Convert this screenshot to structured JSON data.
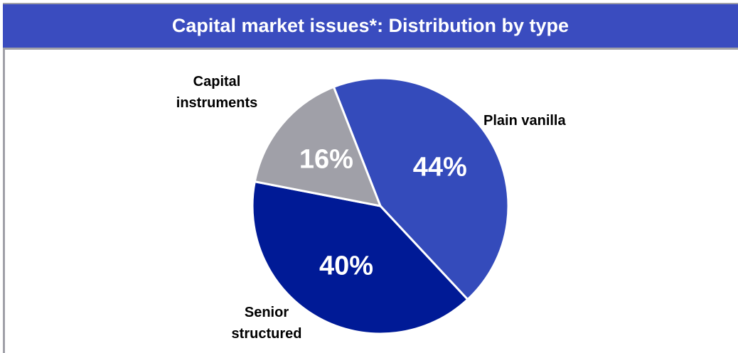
{
  "chart_data": {
    "type": "pie",
    "title": "Capital market issues*: Distribution by type",
    "categories": [
      "Plain vanilla",
      "Senior structured",
      "Capital instruments"
    ],
    "values": [
      44,
      40,
      16
    ],
    "value_labels": [
      "44%",
      "40%",
      "16%"
    ],
    "colors": [
      "#344bbb",
      "#001a96",
      "#a0a0a8"
    ]
  }
}
